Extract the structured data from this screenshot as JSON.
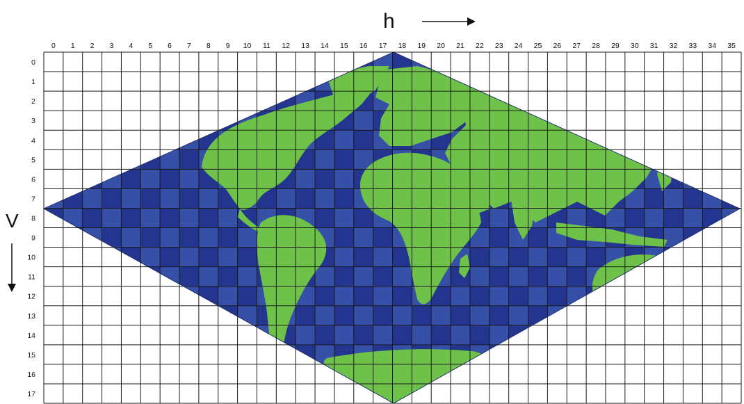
{
  "axes": {
    "horizontal": {
      "label": "h",
      "tick_labels": [
        "0",
        "1",
        "2",
        "3",
        "4",
        "5",
        "6",
        "7",
        "8",
        "9",
        "10",
        "11",
        "12",
        "13",
        "14",
        "15",
        "16",
        "17",
        "18",
        "19",
        "20",
        "21",
        "22",
        "23",
        "24",
        "25",
        "26",
        "27",
        "28",
        "29",
        "30",
        "31",
        "32",
        "33",
        "34",
        "35"
      ]
    },
    "vertical": {
      "label": "V",
      "tick_labels": [
        "0",
        "1",
        "2",
        "3",
        "4",
        "5",
        "6",
        "7",
        "8",
        "9",
        "10",
        "11",
        "12",
        "13",
        "14",
        "15",
        "16",
        "17"
      ]
    }
  },
  "grid": {
    "columns": 36,
    "rows": 18
  },
  "projection": "sinusoidal",
  "colors": {
    "ocean": "#3550a6",
    "ocean_dark": "#23358e",
    "land": "#6ec24a",
    "grid_line": "#1a1a1a",
    "background": "#ffffff"
  }
}
